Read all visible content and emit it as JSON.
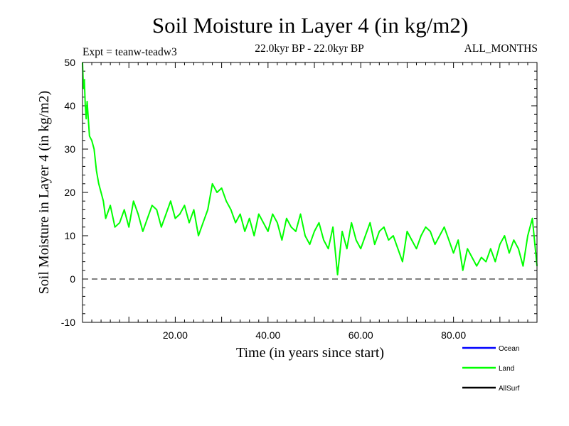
{
  "chart_data": {
    "type": "line",
    "title": "Soil Moisture in Layer 4 (in kg/m2)",
    "experiment_label": "Expt = teanw-teadw3",
    "period_label": "22.0kyr BP - 22.0kyr BP",
    "months_label": "ALL_MONTHS",
    "xlabel": "Time (in years since start)",
    "ylabel": "Soil Moisture in Layer 4 (in kg/m2)",
    "xlim": [
      0,
      98
    ],
    "ylim": [
      -10,
      50
    ],
    "x_tick_values": [
      20,
      40,
      60,
      80
    ],
    "x_tick_labels": [
      "20.00",
      "40.00",
      "60.00",
      "80.00"
    ],
    "y_tick_values": [
      50,
      40,
      30,
      20,
      10,
      0,
      -10
    ],
    "y_tick_labels": [
      "50",
      "40",
      "30",
      "20",
      "10",
      "0",
      "-10"
    ],
    "reference_line": 0,
    "legend": [
      {
        "name": "Ocean",
        "color": "#0000ff"
      },
      {
        "name": "Land",
        "color": "#00ff00"
      },
      {
        "name": "AllSurf",
        "color": "#000000"
      }
    ],
    "series": [
      {
        "name": "Land",
        "color": "#00ff00",
        "x": [
          0,
          0.2,
          0.4,
          0.6,
          0.8,
          1,
          1.5,
          2,
          2.5,
          3,
          3.5,
          4,
          4.5,
          5,
          6,
          7,
          8,
          9,
          10,
          11,
          12,
          13,
          14,
          15,
          16,
          17,
          18,
          19,
          20,
          21,
          22,
          23,
          24,
          25,
          26,
          27,
          28,
          29,
          30,
          31,
          32,
          33,
          34,
          35,
          36,
          37,
          38,
          39,
          40,
          41,
          42,
          43,
          44,
          45,
          46,
          47,
          48,
          49,
          50,
          51,
          52,
          53,
          54,
          55,
          56,
          57,
          58,
          59,
          60,
          61,
          62,
          63,
          64,
          65,
          66,
          67,
          68,
          69,
          70,
          71,
          72,
          73,
          74,
          75,
          76,
          77,
          78,
          79,
          80,
          81,
          82,
          83,
          84,
          85,
          86,
          87,
          88,
          89,
          90,
          91,
          92,
          93,
          94,
          95,
          96,
          97,
          98
        ],
        "values": [
          50,
          44,
          46,
          40,
          37,
          41,
          33,
          32,
          30,
          25,
          22,
          20,
          18,
          14,
          17,
          12,
          13,
          16,
          12,
          18,
          15,
          11,
          14,
          17,
          16,
          12,
          15,
          18,
          14,
          15,
          17,
          13,
          16,
          10,
          13,
          16,
          22,
          20,
          21,
          18,
          16,
          13,
          15,
          11,
          14,
          10,
          15,
          13,
          11,
          15,
          13,
          9,
          14,
          12,
          11,
          15,
          10,
          8,
          11,
          13,
          9,
          7,
          12,
          1,
          11,
          7,
          13,
          9,
          7,
          10,
          13,
          8,
          11,
          12,
          9,
          10,
          7,
          4,
          11,
          9,
          7,
          10,
          12,
          11,
          8,
          10,
          12,
          9,
          6,
          9,
          2,
          7,
          5,
          3,
          5,
          4,
          7,
          4,
          8,
          10,
          6,
          9,
          7,
          3,
          10,
          14,
          3
        ]
      }
    ]
  }
}
